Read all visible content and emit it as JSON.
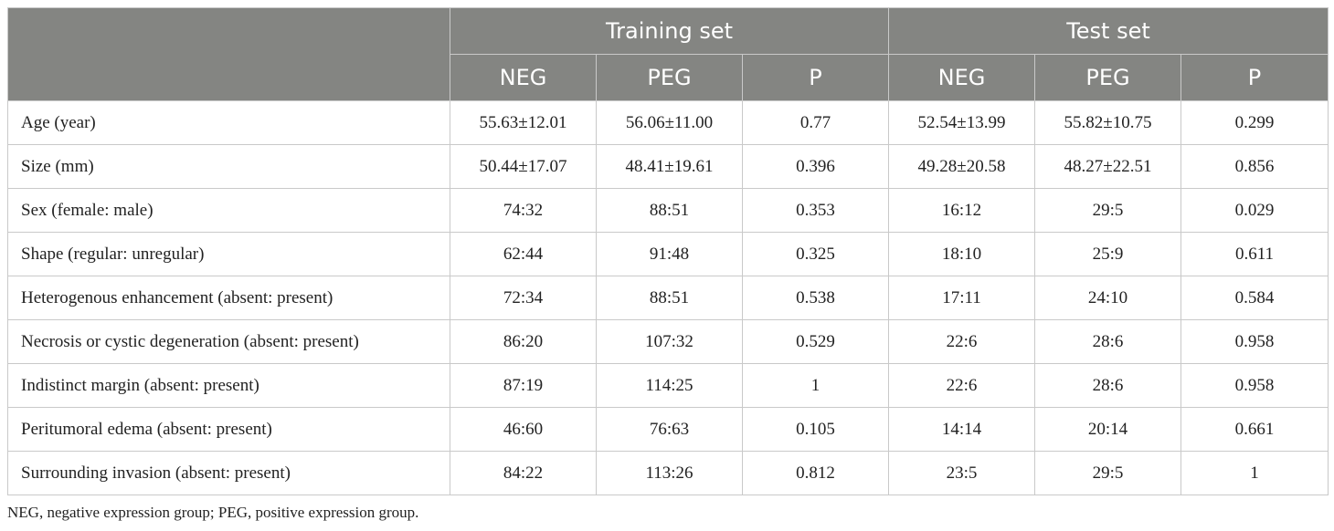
{
  "header": {
    "group1": "Training set",
    "group2": "Test set",
    "sub": [
      "NEG",
      "PEG",
      "P",
      "NEG",
      "PEG",
      "P"
    ]
  },
  "rows": [
    {
      "label": "Age (year)",
      "cells": [
        "55.63±12.01",
        "56.06±11.00",
        "0.77",
        "52.54±13.99",
        "55.82±10.75",
        "0.299"
      ]
    },
    {
      "label": "Size (mm)",
      "cells": [
        "50.44±17.07",
        "48.41±19.61",
        "0.396",
        "49.28±20.58",
        "48.27±22.51",
        "0.856"
      ]
    },
    {
      "label": "Sex (female: male)",
      "cells": [
        "74:32",
        "88:51",
        "0.353",
        "16:12",
        "29:5",
        "0.029"
      ]
    },
    {
      "label": "Shape (regular: unregular)",
      "cells": [
        "62:44",
        "91:48",
        "0.325",
        "18:10",
        "25:9",
        "0.611"
      ]
    },
    {
      "label": "Heterogenous enhancement (absent: present)",
      "cells": [
        "72:34",
        "88:51",
        "0.538",
        "17:11",
        "24:10",
        "0.584"
      ]
    },
    {
      "label": "Necrosis or cystic degeneration (absent: present)",
      "cells": [
        "86:20",
        "107:32",
        "0.529",
        "22:6",
        "28:6",
        "0.958"
      ]
    },
    {
      "label": "Indistinct margin (absent: present)",
      "cells": [
        "87:19",
        "114:25",
        "1",
        "22:6",
        "28:6",
        "0.958"
      ]
    },
    {
      "label": "Peritumoral edema (absent: present)",
      "cells": [
        "46:60",
        "76:63",
        "0.105",
        "14:14",
        "20:14",
        "0.661"
      ]
    },
    {
      "label": "Surrounding invasion (absent: present)",
      "cells": [
        "84:22",
        "113:26",
        "0.812",
        "23:5",
        "29:5",
        "1"
      ]
    }
  ],
  "footnote": "NEG, negative expression group; PEG, positive expression group.",
  "colors": {
    "header_bg": "#848582",
    "header_text": "#ffffff",
    "border": "#c9c9c9"
  }
}
